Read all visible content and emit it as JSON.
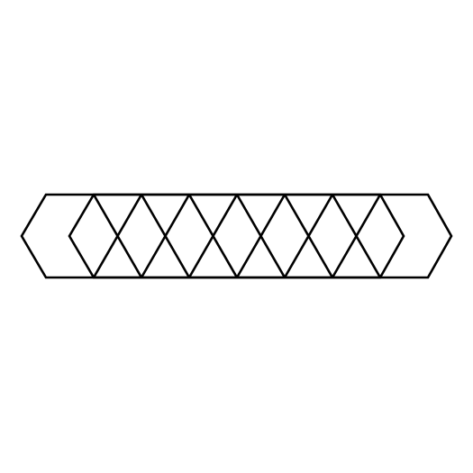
{
  "figure": {
    "description_visible_text": "",
    "colors": {
      "background": "#ffffff",
      "stroke": "#000000"
    },
    "shapes": {
      "outer_hexagon_count": 1,
      "inner_hexagon_count": 1,
      "zigzag_segment_count": 14
    }
  }
}
